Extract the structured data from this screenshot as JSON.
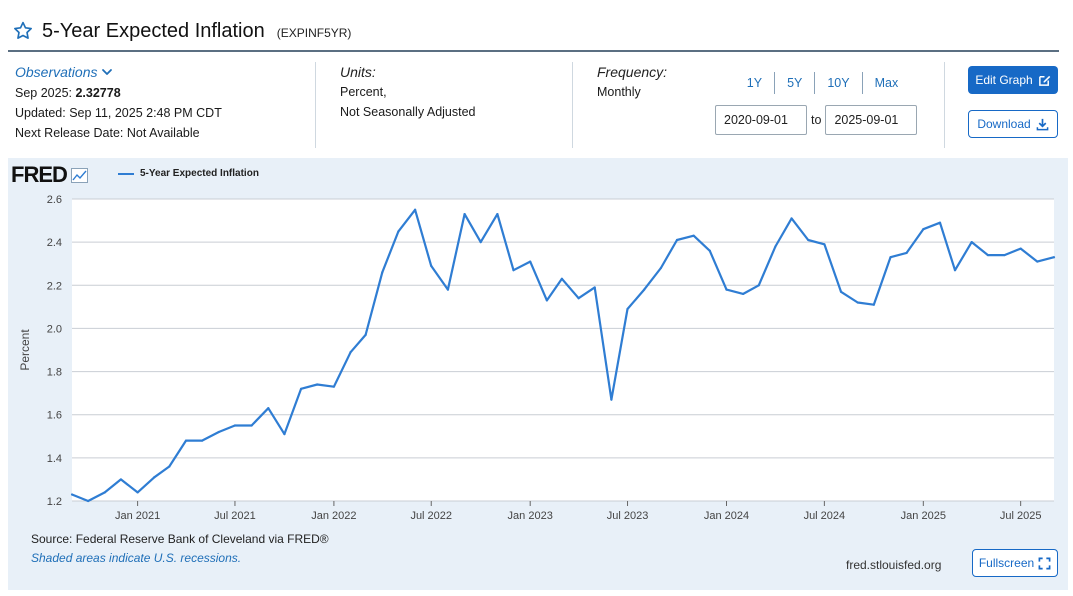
{
  "header": {
    "title": "5-Year Expected Inflation",
    "series_id": "(EXPINF5YR)"
  },
  "observations": {
    "link_label": "Observations",
    "latest_prefix": "Sep 2025: ",
    "latest_value": "2.32778",
    "updated": "Updated: Sep 11, 2025 2:48 PM CDT",
    "next_release": "Next Release Date: Not Available"
  },
  "units": {
    "label": "Units:",
    "line1": "Percent,",
    "line2": "Not Seasonally Adjusted"
  },
  "frequency": {
    "label": "Frequency:",
    "value": "Monthly"
  },
  "range": {
    "links": [
      "1Y",
      "5Y",
      "10Y",
      "Max"
    ],
    "start": "2020-09-01",
    "to_label": "to",
    "end": "2025-09-01"
  },
  "buttons": {
    "edit_graph": "Edit Graph",
    "download": "Download",
    "fullscreen": "Fullscreen"
  },
  "chart_panel": {
    "logo_text": "FRED",
    "source": "Source: Federal Reserve Bank of Cleveland via FRED®",
    "recession_note": "Shaded areas indicate U.S. recessions.",
    "site": "fred.stlouisfed.org"
  },
  "colors": {
    "line": "#2f7dd3",
    "accent": "#1769c6",
    "panel_bg": "#e8f0f8"
  },
  "chart_data": {
    "type": "line",
    "title": "",
    "xlabel": "",
    "ylabel": "Percent",
    "ylim": [
      1.2,
      2.6
    ],
    "yticks": [
      1.2,
      1.4,
      1.6,
      1.8,
      2.0,
      2.2,
      2.4,
      2.6
    ],
    "xlim": [
      "2020-09-01",
      "2025-09-01"
    ],
    "xticks": [
      {
        "date": "2021-01-01",
        "label": "Jan 2021"
      },
      {
        "date": "2021-07-01",
        "label": "Jul 2021"
      },
      {
        "date": "2022-01-01",
        "label": "Jan 2022"
      },
      {
        "date": "2022-07-01",
        "label": "Jul 2022"
      },
      {
        "date": "2023-01-01",
        "label": "Jan 2023"
      },
      {
        "date": "2023-07-01",
        "label": "Jul 2023"
      },
      {
        "date": "2024-01-01",
        "label": "Jan 2024"
      },
      {
        "date": "2024-07-01",
        "label": "Jul 2024"
      },
      {
        "date": "2025-01-01",
        "label": "Jan 2025"
      },
      {
        "date": "2025-07-01",
        "label": "Jul 2025"
      }
    ],
    "grid": true,
    "legend": "top-left",
    "series": [
      {
        "name": "5-Year Expected Inflation",
        "color": "#2f7dd3",
        "x": [
          "2020-09-01",
          "2020-10-01",
          "2020-11-01",
          "2020-12-01",
          "2021-01-01",
          "2021-02-01",
          "2021-03-01",
          "2021-04-01",
          "2021-05-01",
          "2021-06-01",
          "2021-07-01",
          "2021-08-01",
          "2021-09-01",
          "2021-10-01",
          "2021-11-01",
          "2021-12-01",
          "2022-01-01",
          "2022-02-01",
          "2022-03-01",
          "2022-04-01",
          "2022-05-01",
          "2022-06-01",
          "2022-07-01",
          "2022-08-01",
          "2022-09-01",
          "2022-10-01",
          "2022-11-01",
          "2022-12-01",
          "2023-01-01",
          "2023-02-01",
          "2023-03-01",
          "2023-04-01",
          "2023-05-01",
          "2023-06-01",
          "2023-07-01",
          "2023-08-01",
          "2023-09-01",
          "2023-10-01",
          "2023-11-01",
          "2023-12-01",
          "2024-01-01",
          "2024-02-01",
          "2024-03-01",
          "2024-04-01",
          "2024-05-01",
          "2024-06-01",
          "2024-07-01",
          "2024-08-01",
          "2024-09-01",
          "2024-10-01",
          "2024-11-01",
          "2024-12-01",
          "2025-01-01",
          "2025-02-01",
          "2025-03-01",
          "2025-04-01",
          "2025-05-01",
          "2025-06-01",
          "2025-07-01",
          "2025-08-01",
          "2025-09-01"
        ],
        "y": [
          1.23,
          1.2,
          1.24,
          1.3,
          1.24,
          1.31,
          1.36,
          1.48,
          1.48,
          1.52,
          1.55,
          1.55,
          1.63,
          1.51,
          1.72,
          1.74,
          1.73,
          1.89,
          1.97,
          2.26,
          2.45,
          2.55,
          2.29,
          2.18,
          2.53,
          2.4,
          2.53,
          2.27,
          2.31,
          2.13,
          2.23,
          2.14,
          2.19,
          1.67,
          2.09,
          2.18,
          2.28,
          2.41,
          2.43,
          2.36,
          2.18,
          2.16,
          2.2,
          2.38,
          2.51,
          2.41,
          2.39,
          2.17,
          2.12,
          2.11,
          2.33,
          2.35,
          2.46,
          2.49,
          2.27,
          2.4,
          2.34,
          2.34,
          2.37,
          2.31,
          2.33
        ]
      }
    ]
  }
}
